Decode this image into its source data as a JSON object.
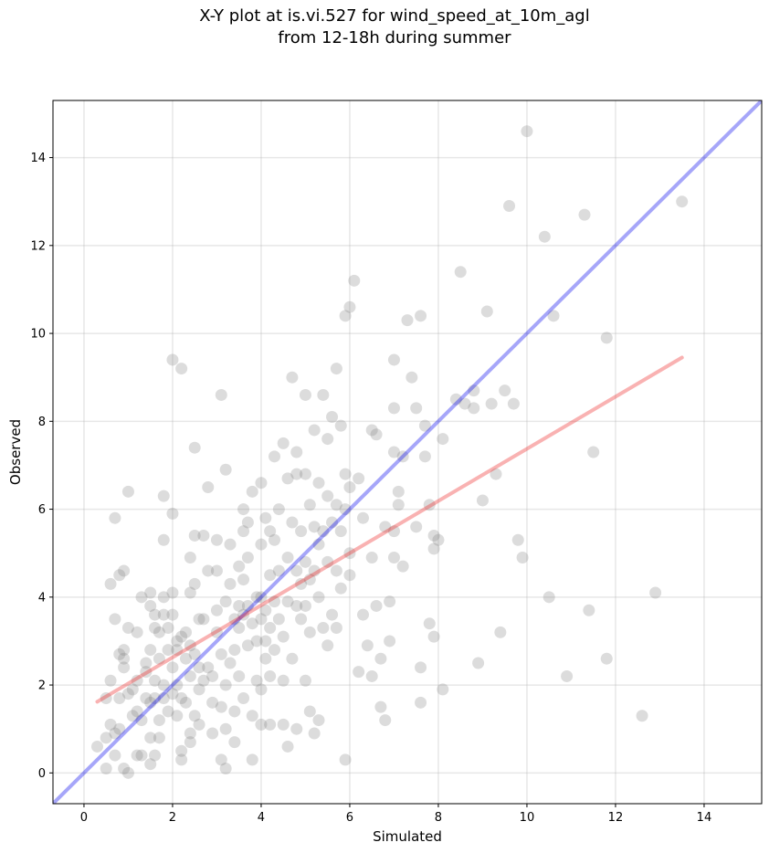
{
  "chart_data": {
    "type": "scatter",
    "title_lines": [
      "X-Y plot at is.vi.527 for wind_speed_at_10m_agl",
      "from 12-18h during summer"
    ],
    "xlabel": "Simulated",
    "ylabel": "Observed",
    "xlim": [
      -0.7,
      15.3
    ],
    "ylim": [
      -0.7,
      15.3
    ],
    "xticks": [
      0,
      2,
      4,
      6,
      8,
      10,
      12,
      14
    ],
    "yticks": [
      0,
      2,
      4,
      6,
      8,
      10,
      12,
      14
    ],
    "grid": true,
    "colors": {
      "points": "#808080",
      "identity_line": "#0000ee",
      "fit_line": "#ee2222"
    },
    "reference_lines": [
      {
        "kind": "identity",
        "x": [
          -0.7,
          15.3
        ],
        "y": [
          -0.7,
          15.3
        ]
      },
      {
        "kind": "regression",
        "x": [
          0.3,
          13.5
        ],
        "y": [
          1.62,
          9.45
        ]
      }
    ],
    "points": [
      [
        0.3,
        0.6
      ],
      [
        0.5,
        0.1
      ],
      [
        0.5,
        1.7
      ],
      [
        0.5,
        0.8
      ],
      [
        0.6,
        2.1
      ],
      [
        0.6,
        1.1
      ],
      [
        0.6,
        4.3
      ],
      [
        0.7,
        5.8
      ],
      [
        0.7,
        0.9
      ],
      [
        0.7,
        0.4
      ],
      [
        0.7,
        3.5
      ],
      [
        0.8,
        2.7
      ],
      [
        0.8,
        4.5
      ],
      [
        0.8,
        1.0
      ],
      [
        0.8,
        1.7
      ],
      [
        0.9,
        2.4
      ],
      [
        0.9,
        2.6
      ],
      [
        0.9,
        4.6
      ],
      [
        0.9,
        2.8
      ],
      [
        0.9,
        0.1
      ],
      [
        1.0,
        0.0
      ],
      [
        1.0,
        1.8
      ],
      [
        1.0,
        3.3
      ],
      [
        1.0,
        6.4
      ],
      [
        1.1,
        1.3
      ],
      [
        1.1,
        1.9
      ],
      [
        1.2,
        1.4
      ],
      [
        1.2,
        2.1
      ],
      [
        1.2,
        3.2
      ],
      [
        1.2,
        0.4
      ],
      [
        1.3,
        1.2
      ],
      [
        1.3,
        4.0
      ],
      [
        1.3,
        0.4
      ],
      [
        1.4,
        1.7
      ],
      [
        1.4,
        2.3
      ],
      [
        1.4,
        2.5
      ],
      [
        1.5,
        2.8
      ],
      [
        1.5,
        0.8
      ],
      [
        1.5,
        1.6
      ],
      [
        1.5,
        3.8
      ],
      [
        1.5,
        4.1
      ],
      [
        1.5,
        0.2
      ],
      [
        1.6,
        1.7
      ],
      [
        1.6,
        3.3
      ],
      [
        1.6,
        2.1
      ],
      [
        1.6,
        3.6
      ],
      [
        1.6,
        0.4
      ],
      [
        1.7,
        0.8
      ],
      [
        1.7,
        3.2
      ],
      [
        1.7,
        2.6
      ],
      [
        1.7,
        1.2
      ],
      [
        1.8,
        6.3
      ],
      [
        1.8,
        5.3
      ],
      [
        1.8,
        1.7
      ],
      [
        1.8,
        2.0
      ],
      [
        1.8,
        3.6
      ],
      [
        1.8,
        4.0
      ],
      [
        1.9,
        3.3
      ],
      [
        1.9,
        2.8
      ],
      [
        1.9,
        1.4
      ],
      [
        2.0,
        4.1
      ],
      [
        2.0,
        9.4
      ],
      [
        2.0,
        5.9
      ],
      [
        2.0,
        2.4
      ],
      [
        2.0,
        3.6
      ],
      [
        2.0,
        1.8
      ],
      [
        2.1,
        2.8
      ],
      [
        2.1,
        1.3
      ],
      [
        2.1,
        3.0
      ],
      [
        2.1,
        2.0
      ],
      [
        2.2,
        0.5
      ],
      [
        2.2,
        9.2
      ],
      [
        2.2,
        3.1
      ],
      [
        2.2,
        1.7
      ],
      [
        2.2,
        0.3
      ],
      [
        2.3,
        2.6
      ],
      [
        2.3,
        1.6
      ],
      [
        2.3,
        3.2
      ],
      [
        2.4,
        2.2
      ],
      [
        2.4,
        4.9
      ],
      [
        2.4,
        4.1
      ],
      [
        2.4,
        0.9
      ],
      [
        2.4,
        2.9
      ],
      [
        2.4,
        0.7
      ],
      [
        2.5,
        7.4
      ],
      [
        2.5,
        4.3
      ],
      [
        2.5,
        2.7
      ],
      [
        2.5,
        1.3
      ],
      [
        2.5,
        5.4
      ],
      [
        2.6,
        2.4
      ],
      [
        2.6,
        1.9
      ],
      [
        2.6,
        3.5
      ],
      [
        2.6,
        1.1
      ],
      [
        2.7,
        2.1
      ],
      [
        2.7,
        5.4
      ],
      [
        2.7,
        3.5
      ],
      [
        2.8,
        6.5
      ],
      [
        2.8,
        2.4
      ],
      [
        2.8,
        4.6
      ],
      [
        2.9,
        2.2
      ],
      [
        2.9,
        0.9
      ],
      [
        2.9,
        1.6
      ],
      [
        3.0,
        3.7
      ],
      [
        3.0,
        5.3
      ],
      [
        3.0,
        3.2
      ],
      [
        3.0,
        4.6
      ],
      [
        3.1,
        2.7
      ],
      [
        3.1,
        1.5
      ],
      [
        3.1,
        8.6
      ],
      [
        3.1,
        0.3
      ],
      [
        3.2,
        6.9
      ],
      [
        3.2,
        3.9
      ],
      [
        3.2,
        1.0
      ],
      [
        3.2,
        2.0
      ],
      [
        3.2,
        0.1
      ],
      [
        3.3,
        2.5
      ],
      [
        3.3,
        4.3
      ],
      [
        3.3,
        5.2
      ],
      [
        3.4,
        3.5
      ],
      [
        3.4,
        2.8
      ],
      [
        3.4,
        1.4
      ],
      [
        3.4,
        0.7
      ],
      [
        3.5,
        3.8
      ],
      [
        3.5,
        4.7
      ],
      [
        3.5,
        3.3
      ],
      [
        3.5,
        2.2
      ],
      [
        3.6,
        6.0
      ],
      [
        3.6,
        5.5
      ],
      [
        3.6,
        3.6
      ],
      [
        3.6,
        4.4
      ],
      [
        3.6,
        1.7
      ],
      [
        3.7,
        4.9
      ],
      [
        3.7,
        3.8
      ],
      [
        3.7,
        2.9
      ],
      [
        3.7,
        5.7
      ],
      [
        3.8,
        6.4
      ],
      [
        3.8,
        3.4
      ],
      [
        3.8,
        1.3
      ],
      [
        3.8,
        0.3
      ],
      [
        3.9,
        4.0
      ],
      [
        3.9,
        3.0
      ],
      [
        3.9,
        2.1
      ],
      [
        4.0,
        6.6
      ],
      [
        4.0,
        5.2
      ],
      [
        4.0,
        4.0
      ],
      [
        4.0,
        3.5
      ],
      [
        4.0,
        1.9
      ],
      [
        4.0,
        1.1
      ],
      [
        4.1,
        5.8
      ],
      [
        4.1,
        3.7
      ],
      [
        4.1,
        2.6
      ],
      [
        4.1,
        3.0
      ],
      [
        4.2,
        5.5
      ],
      [
        4.2,
        4.5
      ],
      [
        4.2,
        3.3
      ],
      [
        4.2,
        2.2
      ],
      [
        4.2,
        1.1
      ],
      [
        4.3,
        7.2
      ],
      [
        4.3,
        5.3
      ],
      [
        4.3,
        3.9
      ],
      [
        4.3,
        2.8
      ],
      [
        4.4,
        6.0
      ],
      [
        4.4,
        4.6
      ],
      [
        4.4,
        3.5
      ],
      [
        4.5,
        7.5
      ],
      [
        4.5,
        3.1
      ],
      [
        4.5,
        2.1
      ],
      [
        4.5,
        1.1
      ],
      [
        4.6,
        6.7
      ],
      [
        4.6,
        4.9
      ],
      [
        4.6,
        3.9
      ],
      [
        4.6,
        0.6
      ],
      [
        4.7,
        9.0
      ],
      [
        4.7,
        5.7
      ],
      [
        4.7,
        2.6
      ],
      [
        4.8,
        7.3
      ],
      [
        4.8,
        6.8
      ],
      [
        4.8,
        4.6
      ],
      [
        4.8,
        3.8
      ],
      [
        4.8,
        1.0
      ],
      [
        4.9,
        5.5
      ],
      [
        4.9,
        4.3
      ],
      [
        4.9,
        3.5
      ],
      [
        5.0,
        8.6
      ],
      [
        5.0,
        6.8
      ],
      [
        5.0,
        4.8
      ],
      [
        5.0,
        3.8
      ],
      [
        5.0,
        2.1
      ],
      [
        5.1,
        6.1
      ],
      [
        5.1,
        4.4
      ],
      [
        5.1,
        3.2
      ],
      [
        5.1,
        1.4
      ],
      [
        5.2,
        7.8
      ],
      [
        5.2,
        5.6
      ],
      [
        5.2,
        4.6
      ],
      [
        5.2,
        0.9
      ],
      [
        5.3,
        6.6
      ],
      [
        5.3,
        5.2
      ],
      [
        5.3,
        4.0
      ],
      [
        5.3,
        1.2
      ],
      [
        5.4,
        8.6
      ],
      [
        5.4,
        5.5
      ],
      [
        5.4,
        3.3
      ],
      [
        5.5,
        7.6
      ],
      [
        5.5,
        6.3
      ],
      [
        5.5,
        4.8
      ],
      [
        5.5,
        2.9
      ],
      [
        5.6,
        8.1
      ],
      [
        5.6,
        5.7
      ],
      [
        5.6,
        3.6
      ],
      [
        5.7,
        9.2
      ],
      [
        5.7,
        6.1
      ],
      [
        5.7,
        4.6
      ],
      [
        5.7,
        3.3
      ],
      [
        5.8,
        7.9
      ],
      [
        5.8,
        5.5
      ],
      [
        5.8,
        4.2
      ],
      [
        5.9,
        10.4
      ],
      [
        5.9,
        6.8
      ],
      [
        5.9,
        6.0
      ],
      [
        5.9,
        0.3
      ],
      [
        6.0,
        10.6
      ],
      [
        6.0,
        6.5
      ],
      [
        6.0,
        5.0
      ],
      [
        6.0,
        4.5
      ],
      [
        6.1,
        11.2
      ],
      [
        6.2,
        6.7
      ],
      [
        6.2,
        2.3
      ],
      [
        6.3,
        5.8
      ],
      [
        6.3,
        3.6
      ],
      [
        6.4,
        2.9
      ],
      [
        6.5,
        7.8
      ],
      [
        6.5,
        4.9
      ],
      [
        6.5,
        2.2
      ],
      [
        6.6,
        7.7
      ],
      [
        6.6,
        3.8
      ],
      [
        6.7,
        2.6
      ],
      [
        6.7,
        1.5
      ],
      [
        6.8,
        5.6
      ],
      [
        6.8,
        1.2
      ],
      [
        6.9,
        3.0
      ],
      [
        6.9,
        3.9
      ],
      [
        7.0,
        9.4
      ],
      [
        7.0,
        8.3
      ],
      [
        7.0,
        7.3
      ],
      [
        7.0,
        5.5
      ],
      [
        7.0,
        4.9
      ],
      [
        7.1,
        6.4
      ],
      [
        7.1,
        6.1
      ],
      [
        7.2,
        7.2
      ],
      [
        7.2,
        4.7
      ],
      [
        7.3,
        10.3
      ],
      [
        7.4,
        9.0
      ],
      [
        7.5,
        8.3
      ],
      [
        7.5,
        5.6
      ],
      [
        7.6,
        10.4
      ],
      [
        7.6,
        2.4
      ],
      [
        7.6,
        1.6
      ],
      [
        7.7,
        7.9
      ],
      [
        7.7,
        7.2
      ],
      [
        7.8,
        6.1
      ],
      [
        7.8,
        3.4
      ],
      [
        7.9,
        5.1
      ],
      [
        7.9,
        5.4
      ],
      [
        7.9,
        3.1
      ],
      [
        8.0,
        5.3
      ],
      [
        8.1,
        7.6
      ],
      [
        8.1,
        1.9
      ],
      [
        8.4,
        8.5
      ],
      [
        8.5,
        11.4
      ],
      [
        8.6,
        8.4
      ],
      [
        8.8,
        8.7
      ],
      [
        8.8,
        8.3
      ],
      [
        8.9,
        2.5
      ],
      [
        9.0,
        6.2
      ],
      [
        9.1,
        10.5
      ],
      [
        9.2,
        8.4
      ],
      [
        9.3,
        6.8
      ],
      [
        9.4,
        3.2
      ],
      [
        9.5,
        8.7
      ],
      [
        9.6,
        12.9
      ],
      [
        9.7,
        8.4
      ],
      [
        9.8,
        5.3
      ],
      [
        9.9,
        4.9
      ],
      [
        10.0,
        14.6
      ],
      [
        10.4,
        12.2
      ],
      [
        10.5,
        4.0
      ],
      [
        10.6,
        10.4
      ],
      [
        10.9,
        2.2
      ],
      [
        11.3,
        12.7
      ],
      [
        11.4,
        3.7
      ],
      [
        11.5,
        7.3
      ],
      [
        11.8,
        2.6
      ],
      [
        11.8,
        9.9
      ],
      [
        12.6,
        1.3
      ],
      [
        12.9,
        4.1
      ],
      [
        13.5,
        13.0
      ]
    ]
  }
}
